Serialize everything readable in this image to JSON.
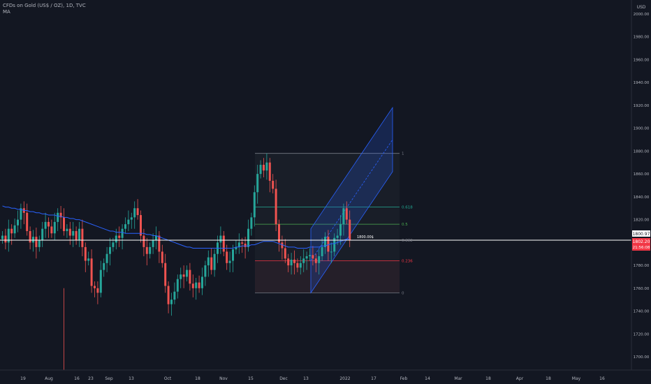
{
  "legend": {
    "symbol_line": "CFDs on Gold (US$ / OZ), 1D, TVC",
    "indicator": "MA"
  },
  "price_axis": {
    "unit": "USD",
    "ticks": [
      1700,
      1720,
      1740,
      1760,
      1780,
      1800,
      1820,
      1840,
      1860,
      1880,
      1900,
      1920,
      1940,
      1960,
      1980,
      2000
    ],
    "tick_labels": [
      "1700.00",
      "1720.00",
      "1740.00",
      "1760.00",
      "1780.00",
      "1800.00",
      "1820.00",
      "1840.00",
      "1860.00",
      "1880.00",
      "1900.00",
      "1920.00",
      "1940.00",
      "1960.00",
      "1980.00",
      "2000.00"
    ],
    "price_tag_top": "1800.97",
    "price_tag_main": "1802.20",
    "price_tag_countdown": "21:56:08"
  },
  "time_axis": {
    "labels": [
      "19",
      "Aug",
      "16",
      "23",
      "Sep",
      "13",
      "Oct",
      "18",
      "Nov",
      "15",
      "Dec",
      "13",
      "2022",
      "17",
      "Feb",
      "14",
      "Mar",
      "18",
      "Apr",
      "18",
      "May",
      "16"
    ]
  },
  "fib_levels": [
    {
      "ratio": "1",
      "price": 1878,
      "color": "#787b86"
    },
    {
      "ratio": "0.618",
      "price": 1831,
      "color": "#22ab94"
    },
    {
      "ratio": "0.5",
      "price": 1816,
      "color": "#4caf50"
    },
    {
      "ratio": "0.382",
      "price": 1802,
      "color": "#787b86"
    },
    {
      "ratio": "0.236",
      "price": 1784,
      "color": "#f23645"
    },
    {
      "ratio": "0",
      "price": 1756,
      "color": "#787b86"
    }
  ],
  "annotation": {
    "text": "1800.00$",
    "price": 1802
  },
  "horizontal_line_price": 1802,
  "colors": {
    "background": "#131722",
    "up": "#26a69a",
    "down": "#ef5350",
    "ma": "#2962ff",
    "channel": "#2962ff",
    "text": "#b2b5be",
    "price_tag": "#f23645"
  },
  "chart_data": {
    "type": "candlestick",
    "title": "CFDs on Gold (US$ / OZ), 1D, TVC",
    "ylabel": "USD",
    "ylim": [
      1690,
      2010
    ],
    "series": [
      {
        "name": "CFDs on Gold (US$ / OZ)",
        "closes": [
          1806,
          1800,
          1812,
          1808,
          1815,
          1820,
          1830,
          1826,
          1810,
          1800,
          1805,
          1796,
          1802,
          1812,
          1818,
          1814,
          1808,
          1818,
          1826,
          1822,
          1810,
          1812,
          1806,
          1810,
          1802,
          1812,
          1796,
          1784,
          1786,
          1762,
          1760,
          1756,
          1776,
          1782,
          1790,
          1796,
          1800,
          1806,
          1804,
          1812,
          1816,
          1820,
          1822,
          1830,
          1824,
          1806,
          1796,
          1790,
          1796,
          1802,
          1806,
          1792,
          1782,
          1762,
          1746,
          1750,
          1757,
          1768,
          1772,
          1770,
          1776,
          1764,
          1760,
          1765,
          1760,
          1770,
          1780,
          1787,
          1776,
          1790,
          1800,
          1806,
          1792,
          1782,
          1784,
          1794,
          1796,
          1800,
          1799,
          1796,
          1812,
          1822,
          1844,
          1860,
          1868,
          1863,
          1870,
          1854,
          1847,
          1816,
          1800,
          1795,
          1786,
          1780,
          1785,
          1782,
          1778,
          1782,
          1786,
          1788,
          1789,
          1786,
          1782,
          1788,
          1796,
          1805,
          1792,
          1792,
          1804,
          1806,
          1816,
          1830,
          1820,
          1802
        ]
      },
      {
        "name": "MA",
        "values": [
          1832,
          1831,
          1831,
          1830,
          1830,
          1829,
          1829,
          1828,
          1828,
          1827,
          1827,
          1826,
          1826,
          1825,
          1825,
          1824,
          1824,
          1824,
          1823,
          1823,
          1822,
          1822,
          1821,
          1821,
          1820,
          1820,
          1819,
          1818,
          1817,
          1816,
          1815,
          1814,
          1813,
          1812,
          1811,
          1810,
          1810,
          1809,
          1809,
          1809,
          1808,
          1808,
          1808,
          1808,
          1808,
          1808,
          1808,
          1807,
          1807,
          1806,
          1806,
          1805,
          1804,
          1803,
          1802,
          1801,
          1800,
          1799,
          1798,
          1797,
          1796,
          1796,
          1795,
          1795,
          1795,
          1795,
          1795,
          1795,
          1795,
          1795,
          1795,
          1795,
          1795,
          1795,
          1795,
          1795,
          1796,
          1796,
          1797,
          1797,
          1797,
          1798,
          1798,
          1799,
          1800,
          1801,
          1801,
          1801,
          1801,
          1800,
          1799,
          1798,
          1797,
          1796,
          1796,
          1796,
          1795,
          1795,
          1795,
          1795,
          1796,
          1796,
          1796,
          1796,
          1797,
          1797,
          1798,
          1799,
          1799,
          1800,
          1801,
          1802,
          1803,
          1803
        ]
      }
    ]
  }
}
